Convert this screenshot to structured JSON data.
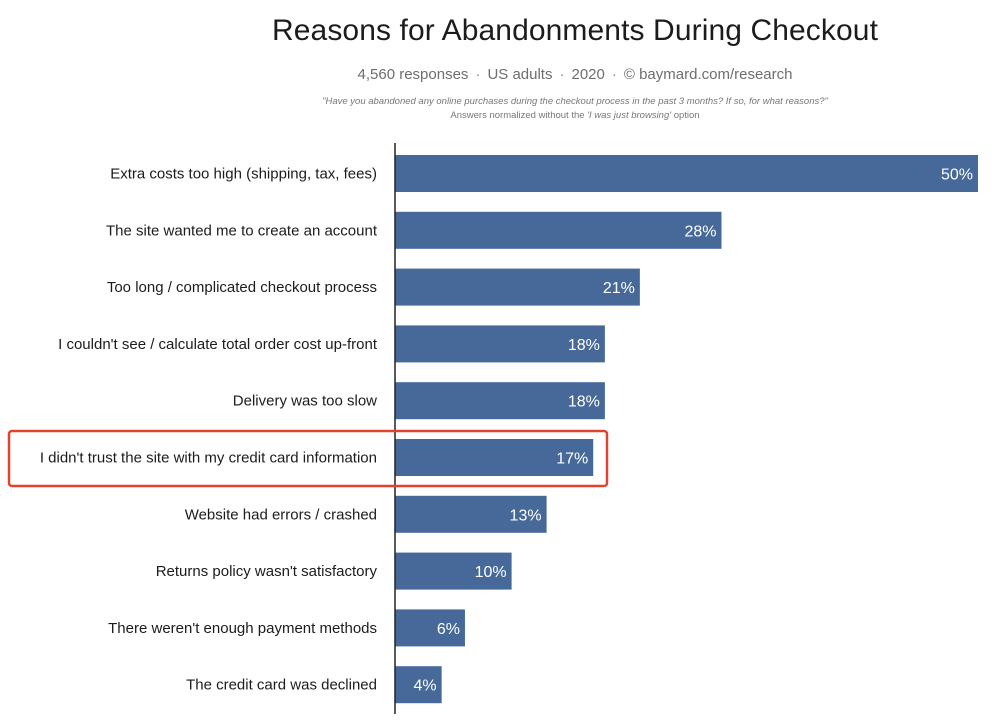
{
  "chart_data": {
    "type": "bar",
    "orientation": "horizontal",
    "title": "Reasons for Abandonments During Checkout",
    "subtitle_parts": [
      "4,560 responses",
      "US adults",
      "2020",
      "© baymard.com/research"
    ],
    "subtitle_separator": "·",
    "question": "\"Have you abandoned any online purchases during the checkout process in the past 3 months? If so, for what reasons?\"",
    "note_prefix": "Answers normalized without the ",
    "note_option": "'I was just browsing'",
    "note_suffix": " option",
    "categories": [
      "Extra costs too high (shipping, tax, fees)",
      "The site wanted me to create an account",
      "Too long / complicated checkout process",
      "I couldn't see / calculate total order cost up-front",
      "Delivery was too slow",
      "I didn't trust the site with my credit card information",
      "Website had errors / crashed",
      "Returns policy wasn't satisfactory",
      "There weren't enough payment methods",
      "The credit card was declined"
    ],
    "values": [
      50,
      28,
      21,
      18,
      18,
      17,
      13,
      10,
      6,
      4
    ],
    "value_labels": [
      "50%",
      "28%",
      "21%",
      "18%",
      "18%",
      "17%",
      "13%",
      "10%",
      "6%",
      "4%"
    ],
    "xlim": [
      0,
      50
    ],
    "grid": false,
    "bar_color": "#46699a",
    "highlight_index": 5,
    "highlight_color": "#e0432f"
  }
}
